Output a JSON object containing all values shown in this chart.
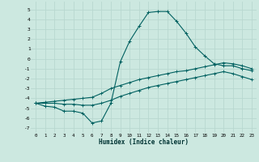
{
  "xlabel": "Humidex (Indice chaleur)",
  "background_color": "#cce8e0",
  "grid_color": "#b8d8d0",
  "line_color": "#006060",
  "xlim": [
    -0.5,
    23.5
  ],
  "ylim": [
    -7.5,
    5.8
  ],
  "xticks": [
    0,
    1,
    2,
    3,
    4,
    5,
    6,
    7,
    8,
    9,
    10,
    11,
    12,
    13,
    14,
    15,
    16,
    17,
    18,
    19,
    20,
    21,
    22,
    23
  ],
  "yticks": [
    -7,
    -6,
    -5,
    -4,
    -3,
    -2,
    -1,
    0,
    1,
    2,
    3,
    4,
    5
  ],
  "line1_x": [
    0,
    1,
    2,
    3,
    4,
    5,
    6,
    7,
    8,
    9,
    10,
    11,
    12,
    13,
    14,
    15,
    16,
    17,
    18,
    19,
    20,
    21,
    22,
    23
  ],
  "line1_y": [
    -4.5,
    -4.8,
    -4.9,
    -5.3,
    -5.3,
    -5.5,
    -6.5,
    -6.3,
    -4.5,
    -0.3,
    1.8,
    3.3,
    4.7,
    4.8,
    4.8,
    3.8,
    2.6,
    1.2,
    0.3,
    -0.5,
    -0.7,
    -0.7,
    -1.0,
    -1.2
  ],
  "line2_x": [
    0,
    1,
    2,
    3,
    4,
    5,
    6,
    7,
    8,
    9,
    10,
    11,
    12,
    13,
    14,
    15,
    16,
    17,
    18,
    19,
    20,
    21,
    22,
    23
  ],
  "line2_y": [
    -4.5,
    -4.4,
    -4.3,
    -4.2,
    -4.1,
    -4.0,
    -3.9,
    -3.5,
    -3.0,
    -2.7,
    -2.4,
    -2.1,
    -1.9,
    -1.7,
    -1.5,
    -1.3,
    -1.2,
    -1.0,
    -0.8,
    -0.6,
    -0.4,
    -0.5,
    -0.7,
    -1.0
  ],
  "line3_x": [
    0,
    1,
    2,
    3,
    4,
    5,
    6,
    7,
    8,
    9,
    10,
    11,
    12,
    13,
    14,
    15,
    16,
    17,
    18,
    19,
    20,
    21,
    22,
    23
  ],
  "line3_y": [
    -4.5,
    -4.5,
    -4.5,
    -4.6,
    -4.6,
    -4.7,
    -4.7,
    -4.5,
    -4.2,
    -3.8,
    -3.5,
    -3.2,
    -2.9,
    -2.7,
    -2.5,
    -2.3,
    -2.1,
    -1.9,
    -1.7,
    -1.5,
    -1.3,
    -1.5,
    -1.8,
    -2.1
  ]
}
